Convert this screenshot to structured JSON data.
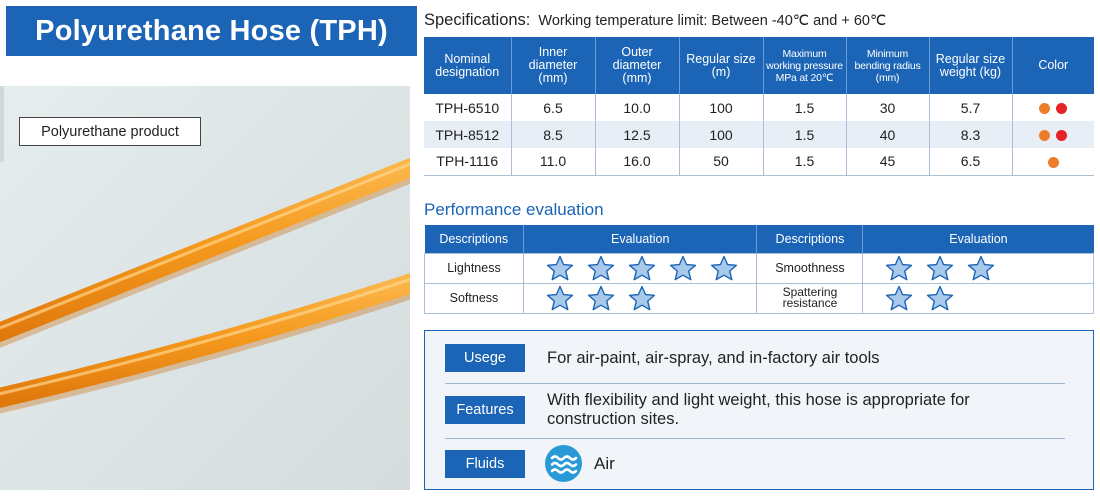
{
  "title": "Polyurethane Hose (TPH)",
  "product_label": "Polyurethane product",
  "specifications": {
    "heading": "Specifications:",
    "note": "Working temperature limit: Between -40℃ and + 60℃",
    "columns": [
      "Nominal designation",
      "Inner diameter (mm)",
      "Outer diameter (mm)",
      "Regular size (m)",
      "Maximum working pressure MPa at 20℃",
      "Minimum bending radius (mm)",
      "Regular size weight (kg)",
      "Color"
    ],
    "rows": [
      {
        "designation": "TPH-6510",
        "inner": "6.5",
        "outer": "10.0",
        "size": "100",
        "pressure": "1.5",
        "radius": "30",
        "weight": "5.7",
        "colors": [
          "orange",
          "red"
        ]
      },
      {
        "designation": "TPH-8512",
        "inner": "8.5",
        "outer": "12.5",
        "size": "100",
        "pressure": "1.5",
        "radius": "40",
        "weight": "8.3",
        "colors": [
          "orange",
          "red"
        ]
      },
      {
        "designation": "TPH-1116",
        "inner": "11.0",
        "outer": "16.0",
        "size": "50",
        "pressure": "1.5",
        "radius": "45",
        "weight": "6.5",
        "colors": [
          "orange"
        ]
      }
    ],
    "color_hex": {
      "orange": "#ee7d2a",
      "red": "#e52226"
    }
  },
  "performance": {
    "heading": "Performance evaluation",
    "col_descriptions": "Descriptions",
    "col_evaluation": "Evaluation",
    "items": [
      {
        "left_label": "Lightness",
        "left_stars": 5,
        "right_label": "Smoothness",
        "right_stars": 3
      },
      {
        "left_label": "Softness",
        "left_stars": 3,
        "right_label": "Spattering resistance",
        "right_stars": 2
      }
    ]
  },
  "info": {
    "usage_tag": "Usege",
    "usage_text": "For air-paint, air-spray, and in-factory air tools",
    "features_tag": "Features",
    "features_text": "With flexibility and light weight, this hose is appropriate for construction sites.",
    "fluids_tag": "Fluids",
    "fluids_icon": "air-wave-icon",
    "fluids_text": "Air"
  },
  "colors": {
    "brand_blue": "#1b64b6",
    "hose_orange": "#f59a1e"
  }
}
